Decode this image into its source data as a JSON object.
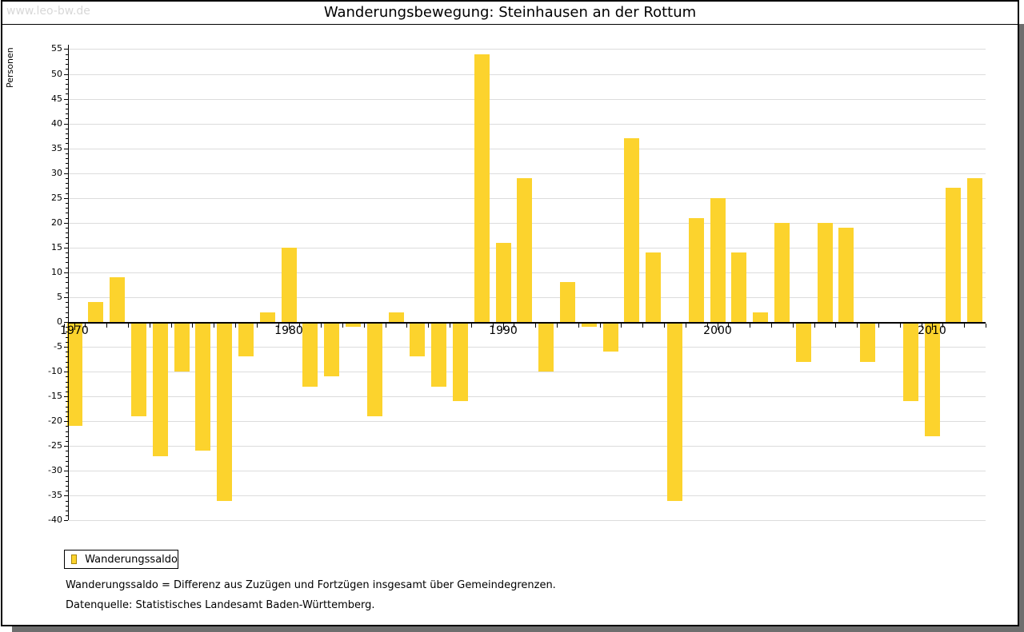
{
  "watermark": "www.leo-bw.de",
  "title": "Wanderungsbewegung: Steinhausen an der Rottum",
  "y_axis_label": "Personen",
  "legend": {
    "label": "Wanderungssaldo"
  },
  "footnotes": [
    "Wanderungssaldo = Differenz aus Zuzügen und Fortzügen insgesamt über Gemeindegrenzen.",
    "Datenquelle: Statistisches Landesamt Baden-Württemberg."
  ],
  "colors": {
    "bar": "#fcd32d",
    "bar_legend_border": "#a6850a",
    "grid": "#dcdcdc",
    "axis": "#000000",
    "watermark": "#d8d8d8",
    "card_shadow": "#6e6e6e"
  },
  "chart_data": {
    "type": "bar",
    "title": "Wanderungsbewegung: Steinhausen an der Rottum",
    "xlabel": "",
    "ylabel": "Personen",
    "ylim": [
      -40,
      55
    ],
    "y_major_tick_step": 5,
    "y_minor_tick_step": 1,
    "grid": true,
    "legend_position": "bottom-left",
    "x_axis_labeled_ticks": [
      "1970",
      "1980",
      "1990",
      "2000",
      "2010"
    ],
    "categories": [
      1970,
      1971,
      1972,
      1973,
      1974,
      1975,
      1976,
      1977,
      1978,
      1979,
      1980,
      1981,
      1982,
      1983,
      1984,
      1985,
      1986,
      1987,
      1988,
      1989,
      1990,
      1991,
      1992,
      1993,
      1994,
      1995,
      1996,
      1997,
      1998,
      1999,
      2000,
      2001,
      2002,
      2003,
      2004,
      2005,
      2006,
      2007,
      2008,
      2009,
      2010,
      2011,
      2012
    ],
    "series": [
      {
        "name": "Wanderungssaldo",
        "values": [
          -21,
          4,
          9,
          -19,
          -27,
          -10,
          -26,
          -36,
          -7,
          2,
          15,
          -13,
          -11,
          -1,
          -19,
          2,
          -7,
          -13,
          -16,
          54,
          16,
          29,
          -10,
          8,
          -1,
          -6,
          37,
          14,
          -36,
          21,
          25,
          14,
          2,
          20,
          -8,
          20,
          19,
          -8,
          0,
          -16,
          -23,
          27,
          29
        ]
      }
    ]
  }
}
